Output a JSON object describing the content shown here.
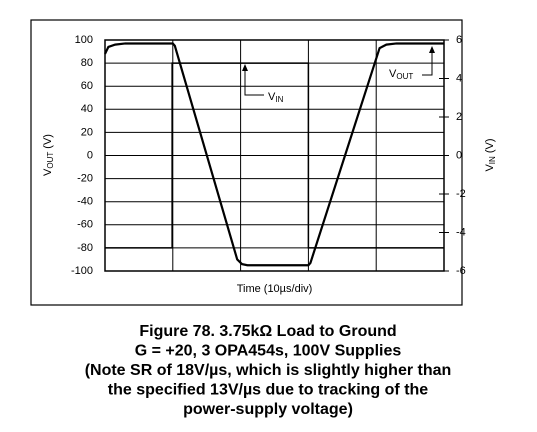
{
  "chart_data": {
    "type": "line",
    "x_label": "Time (10µs/div)",
    "y_label": {
      "main": "V",
      "sub": "OUT",
      "unit": " (V)"
    },
    "y2_label": {
      "main": "V",
      "sub": "IN",
      "unit": " (V)"
    },
    "xlim": [
      0,
      5
    ],
    "ylim": [
      -100,
      100
    ],
    "yticks": [
      -100,
      -80,
      -60,
      -40,
      -20,
      0,
      20,
      40,
      60,
      80,
      100
    ],
    "y2lim": [
      -6,
      6
    ],
    "y2ticks": [
      -6,
      -4,
      -2,
      0,
      2,
      4,
      6
    ],
    "grid": true,
    "series": [
      {
        "name": {
          "main": "V",
          "sub": "OUT"
        },
        "color": "#000000",
        "x": [
          0,
          0.05,
          0.15,
          0.3,
          1.0,
          1.03,
          1.95,
          2.02,
          2.1,
          3.0,
          3.03,
          4.05,
          4.15,
          4.3,
          5
        ],
        "values": [
          88,
          94,
          96,
          97,
          97,
          95,
          -90,
          -94,
          -95,
          -95,
          -93,
          93,
          96,
          97,
          97
        ]
      },
      {
        "name": {
          "main": "V",
          "sub": "IN"
        },
        "color": "#000000",
        "axis": "y2",
        "x": [
          0,
          0.99,
          0.99,
          3.0,
          3.0,
          5
        ],
        "values": [
          -4.8,
          -4.8,
          4.8,
          4.8,
          -4.8,
          -4.8
        ]
      }
    ],
    "caption": [
      "Figure 78. 3.75kΩ Load to Ground",
      "G = +20, 3 OPA454s, 100V Supplies",
      "(Note SR of 18V/µs, which is slightly higher than",
      "the specified 13V/µs due to tracking of the",
      "power-supply voltage)"
    ]
  }
}
